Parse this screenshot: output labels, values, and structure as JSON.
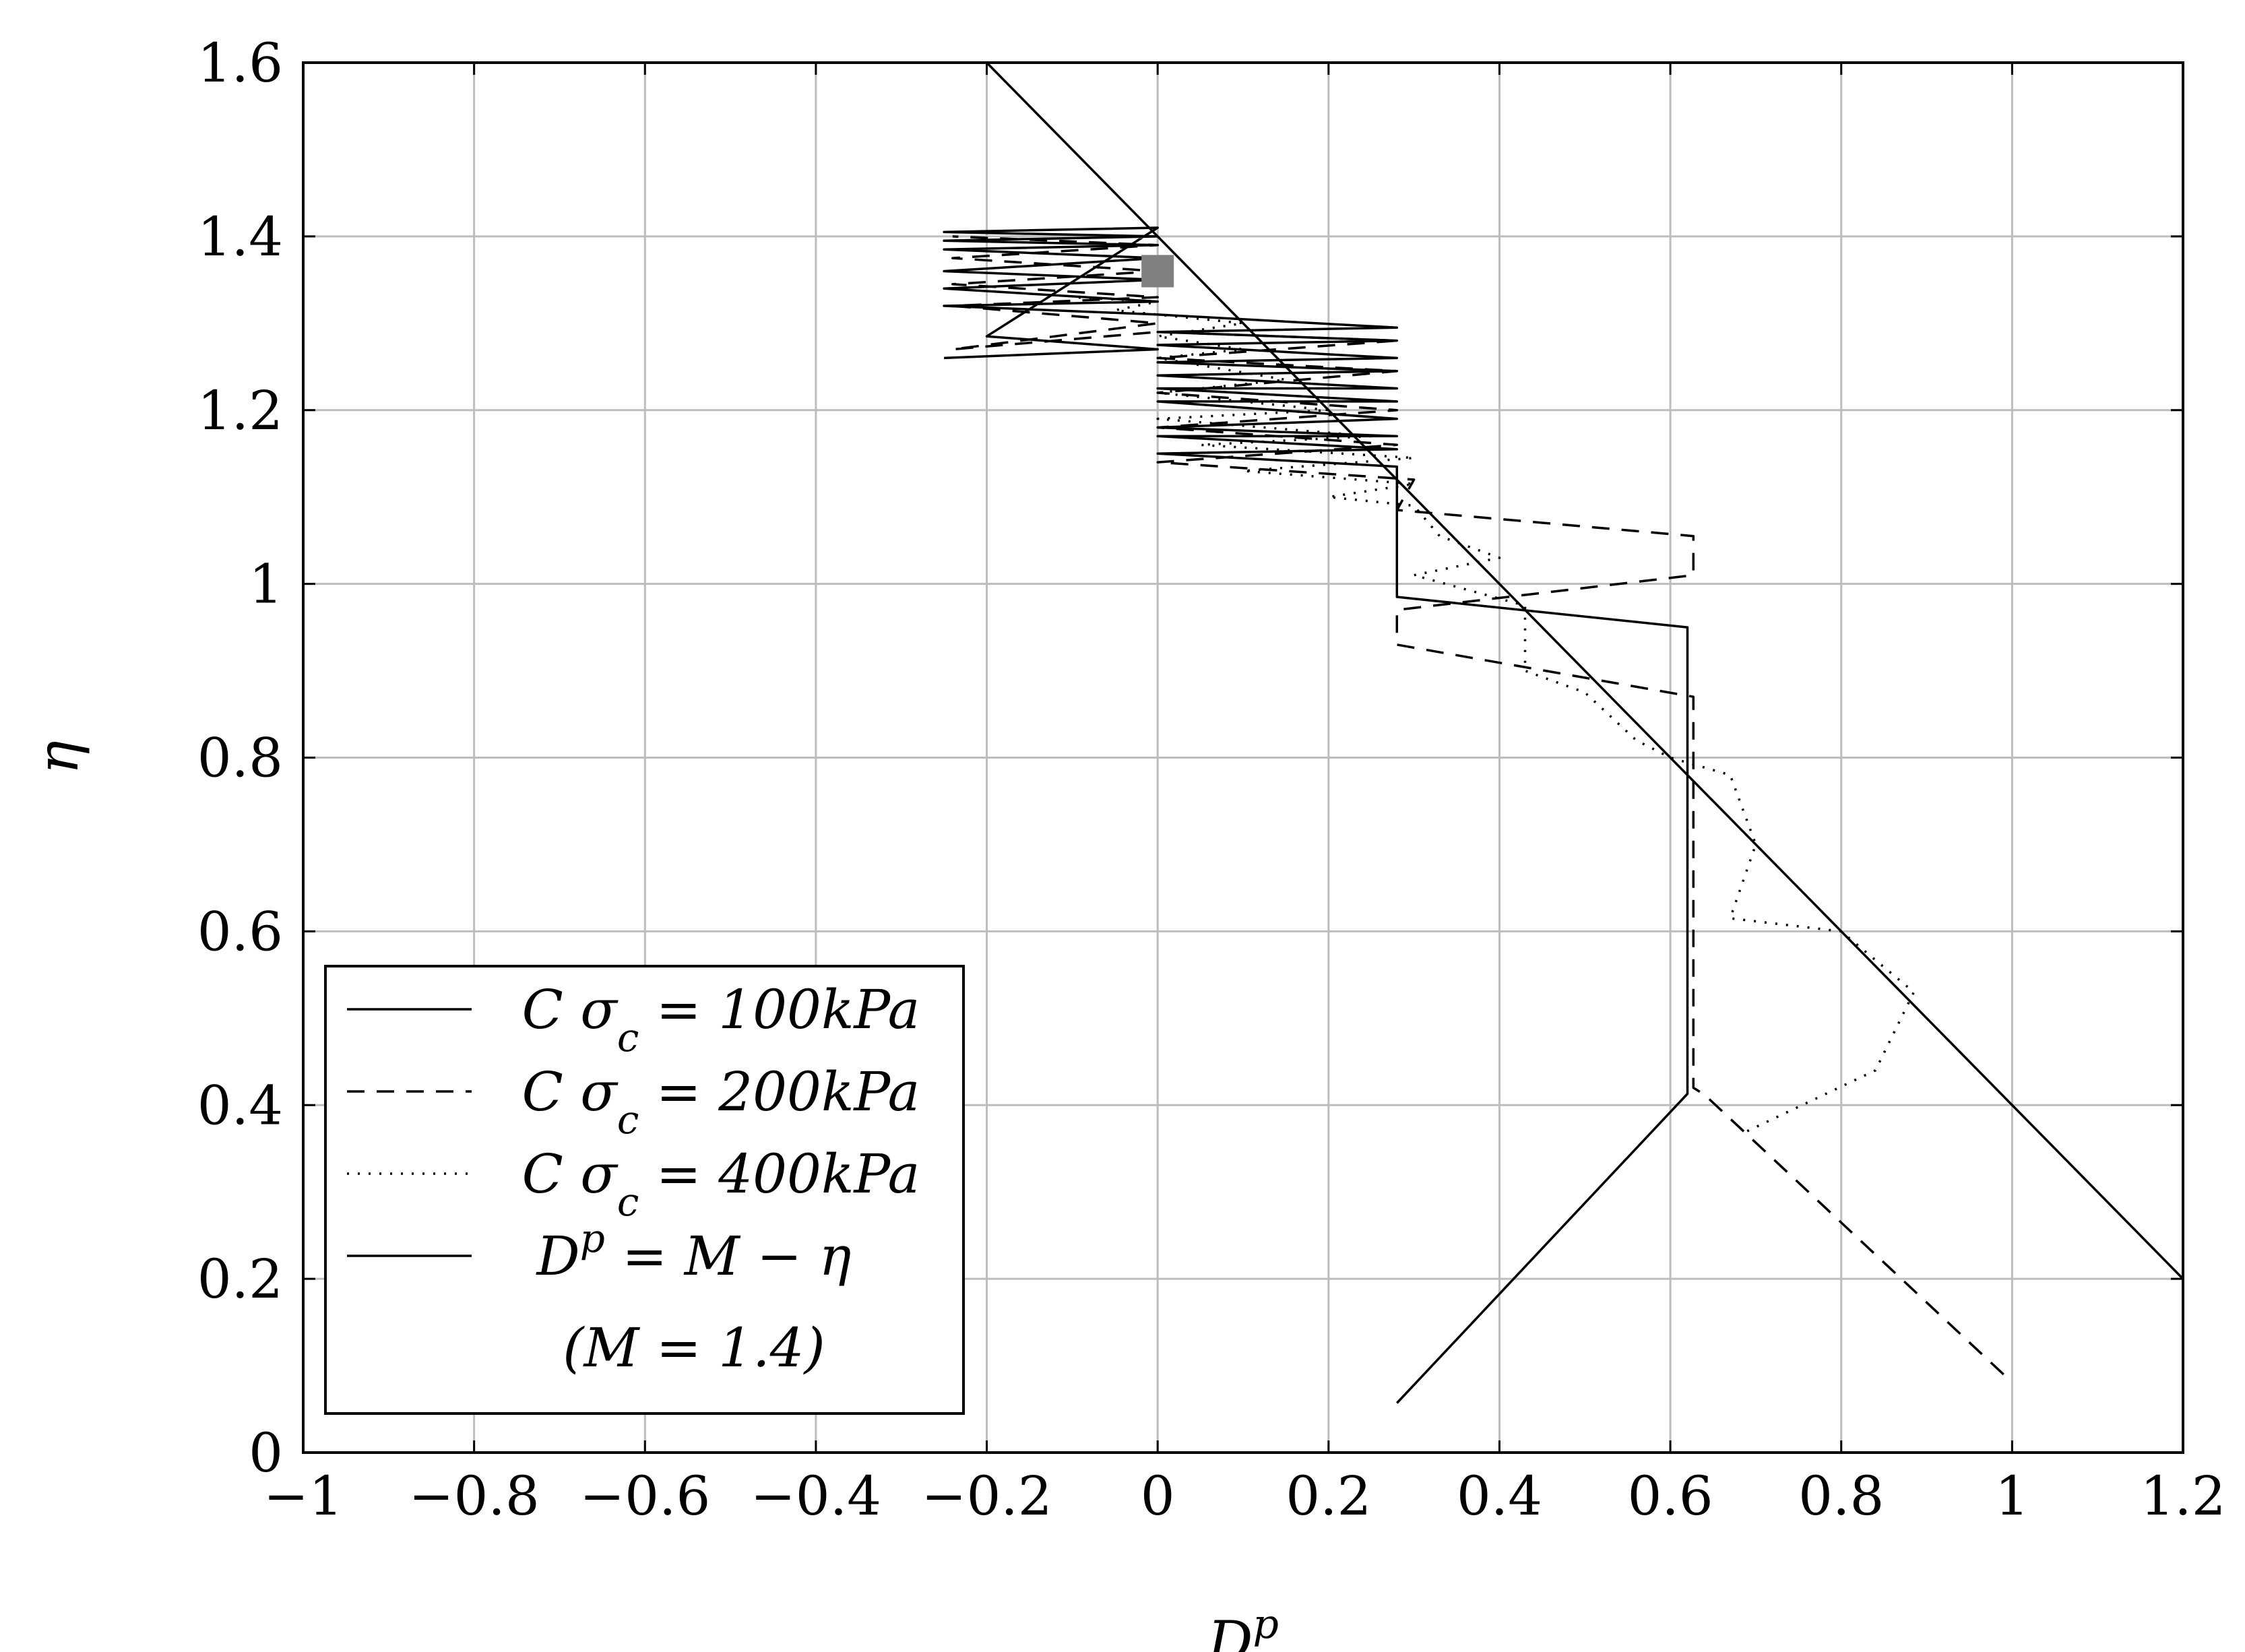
{
  "chart_data": {
    "type": "line",
    "xlabel_base": "D",
    "xlabel_sup": "p",
    "ylabel": "η",
    "xlim": [
      -1,
      1.2
    ],
    "ylim": [
      0,
      1.6
    ],
    "grid": true,
    "legend_position": "bottom-left",
    "x_ticks": [
      -1,
      -0.8,
      -0.6,
      -0.4,
      -0.2,
      0,
      0.2,
      0.4,
      0.6,
      0.8,
      1,
      1.2
    ],
    "x_tick_labels": [
      "−1",
      "−0.8",
      "−0.6",
      "−0.4",
      "−0.2",
      "0",
      "0.2",
      "0.4",
      "0.6",
      "0.8",
      "1",
      "1.2"
    ],
    "y_ticks": [
      0,
      0.2,
      0.4,
      0.6,
      0.8,
      1,
      1.2,
      1.4,
      1.6
    ],
    "y_tick_labels": [
      "0",
      "0.2",
      "0.4",
      "0.6",
      "0.8",
      "1",
      "1.2",
      "1.4",
      "1.6"
    ],
    "legend": {
      "entries": [
        {
          "prefix": "C σ",
          "sub": "c",
          "suffix": " = 100kPa",
          "style": "solid"
        },
        {
          "prefix": "C σ",
          "sub": "c",
          "suffix": " = 200kPa",
          "style": "dashed"
        },
        {
          "prefix": "C σ",
          "sub": "c",
          "suffix": " = 400kPa",
          "style": "dotted"
        },
        {
          "prefix": "D",
          "sup": "p",
          "suffix": " = M − η",
          "style": "solid"
        }
      ],
      "extra_line": "(M = 1.4)"
    },
    "series": [
      {
        "name": "C σc = 100kPa",
        "style": "solid",
        "points": [
          [
            0.28,
            0.057
          ],
          [
            0.62,
            0.413
          ],
          [
            0.62,
            0.95
          ],
          [
            0.28,
            0.985
          ],
          [
            0.28,
            1.135
          ],
          [
            0,
            1.15
          ],
          [
            0.28,
            1.155
          ],
          [
            0,
            1.17
          ],
          [
            0.28,
            1.17
          ],
          [
            0,
            1.18
          ],
          [
            0.28,
            1.19
          ],
          [
            0,
            1.21
          ],
          [
            0.28,
            1.21
          ],
          [
            0,
            1.225
          ],
          [
            0.28,
            1.225
          ],
          [
            0,
            1.24
          ],
          [
            0.28,
            1.245
          ],
          [
            0,
            1.255
          ],
          [
            0.28,
            1.26
          ],
          [
            0,
            1.275
          ],
          [
            0.28,
            1.28
          ],
          [
            0,
            1.29
          ],
          [
            0.28,
            1.295
          ],
          [
            0,
            1.31
          ],
          [
            -0.25,
            1.32
          ],
          [
            0,
            1.325
          ],
          [
            -0.25,
            1.34
          ],
          [
            0,
            1.35
          ],
          [
            -0.25,
            1.36
          ],
          [
            0,
            1.375
          ],
          [
            -0.25,
            1.385
          ],
          [
            0,
            1.39
          ],
          [
            -0.25,
            1.395
          ],
          [
            0,
            1.4
          ],
          [
            -0.25,
            1.405
          ],
          [
            0,
            1.41
          ],
          [
            -0.2,
            1.285
          ],
          [
            0,
            1.27
          ],
          [
            -0.25,
            1.26
          ]
        ]
      },
      {
        "name": "C σc = 200kPa",
        "style": "dashed",
        "points": [
          [
            0.99,
            0.09
          ],
          [
            0.64,
            0.412
          ],
          [
            0.627,
            0.42
          ],
          [
            0.627,
            0.87
          ],
          [
            0.28,
            0.93
          ],
          [
            0.28,
            0.97
          ],
          [
            0.627,
            1.01
          ],
          [
            0.627,
            1.055
          ],
          [
            0.28,
            1.085
          ],
          [
            0.3,
            1.12
          ],
          [
            0,
            1.14
          ],
          [
            0.28,
            1.16
          ],
          [
            0,
            1.18
          ],
          [
            0.28,
            1.2
          ],
          [
            0,
            1.22
          ],
          [
            0.28,
            1.245
          ],
          [
            0,
            1.26
          ],
          [
            0.28,
            1.28
          ],
          [
            0,
            1.29
          ],
          [
            -0.24,
            1.27
          ],
          [
            0,
            1.3
          ],
          [
            -0.24,
            1.32
          ],
          [
            0,
            1.33
          ],
          [
            -0.24,
            1.345
          ],
          [
            0,
            1.36
          ],
          [
            -0.24,
            1.375
          ],
          [
            0,
            1.39
          ],
          [
            -0.24,
            1.4
          ]
        ]
      },
      {
        "name": "C σc = 400kPa",
        "style": "dotted",
        "points": [
          [
            0.69,
            0.37
          ],
          [
            0.84,
            0.44
          ],
          [
            0.885,
            0.53
          ],
          [
            0.8,
            0.6
          ],
          [
            0.67,
            0.615
          ],
          [
            0.7,
            0.7
          ],
          [
            0.67,
            0.78
          ],
          [
            0.6,
            0.8
          ],
          [
            0.56,
            0.82
          ],
          [
            0.5,
            0.875
          ],
          [
            0.43,
            0.9
          ],
          [
            0.43,
            0.975
          ],
          [
            0.3,
            1.01
          ],
          [
            0.4,
            1.03
          ],
          [
            0.33,
            1.055
          ],
          [
            0.3,
            1.09
          ],
          [
            0.2,
            1.1
          ],
          [
            0.3,
            1.115
          ],
          [
            0.1,
            1.13
          ],
          [
            0.3,
            1.145
          ],
          [
            0.05,
            1.16
          ],
          [
            0.25,
            1.17
          ],
          [
            0,
            1.19
          ],
          [
            0.2,
            1.2
          ],
          [
            0,
            1.22
          ],
          [
            0.15,
            1.235
          ],
          [
            0,
            1.26
          ],
          [
            0.1,
            1.27
          ],
          [
            0,
            1.285
          ],
          [
            0.1,
            1.3
          ],
          [
            -0.05,
            1.315
          ],
          [
            0,
            1.325
          ],
          [
            -0.1,
            1.33
          ]
        ]
      },
      {
        "name": "Dp = M − η (M = 1.4)",
        "style": "solid",
        "points": [
          [
            -0.2,
            1.6
          ],
          [
            1.2,
            0.2
          ]
        ]
      }
    ],
    "markers": [
      {
        "x": 0,
        "y": 1.36,
        "shape": "square",
        "color": "#808080"
      }
    ]
  }
}
